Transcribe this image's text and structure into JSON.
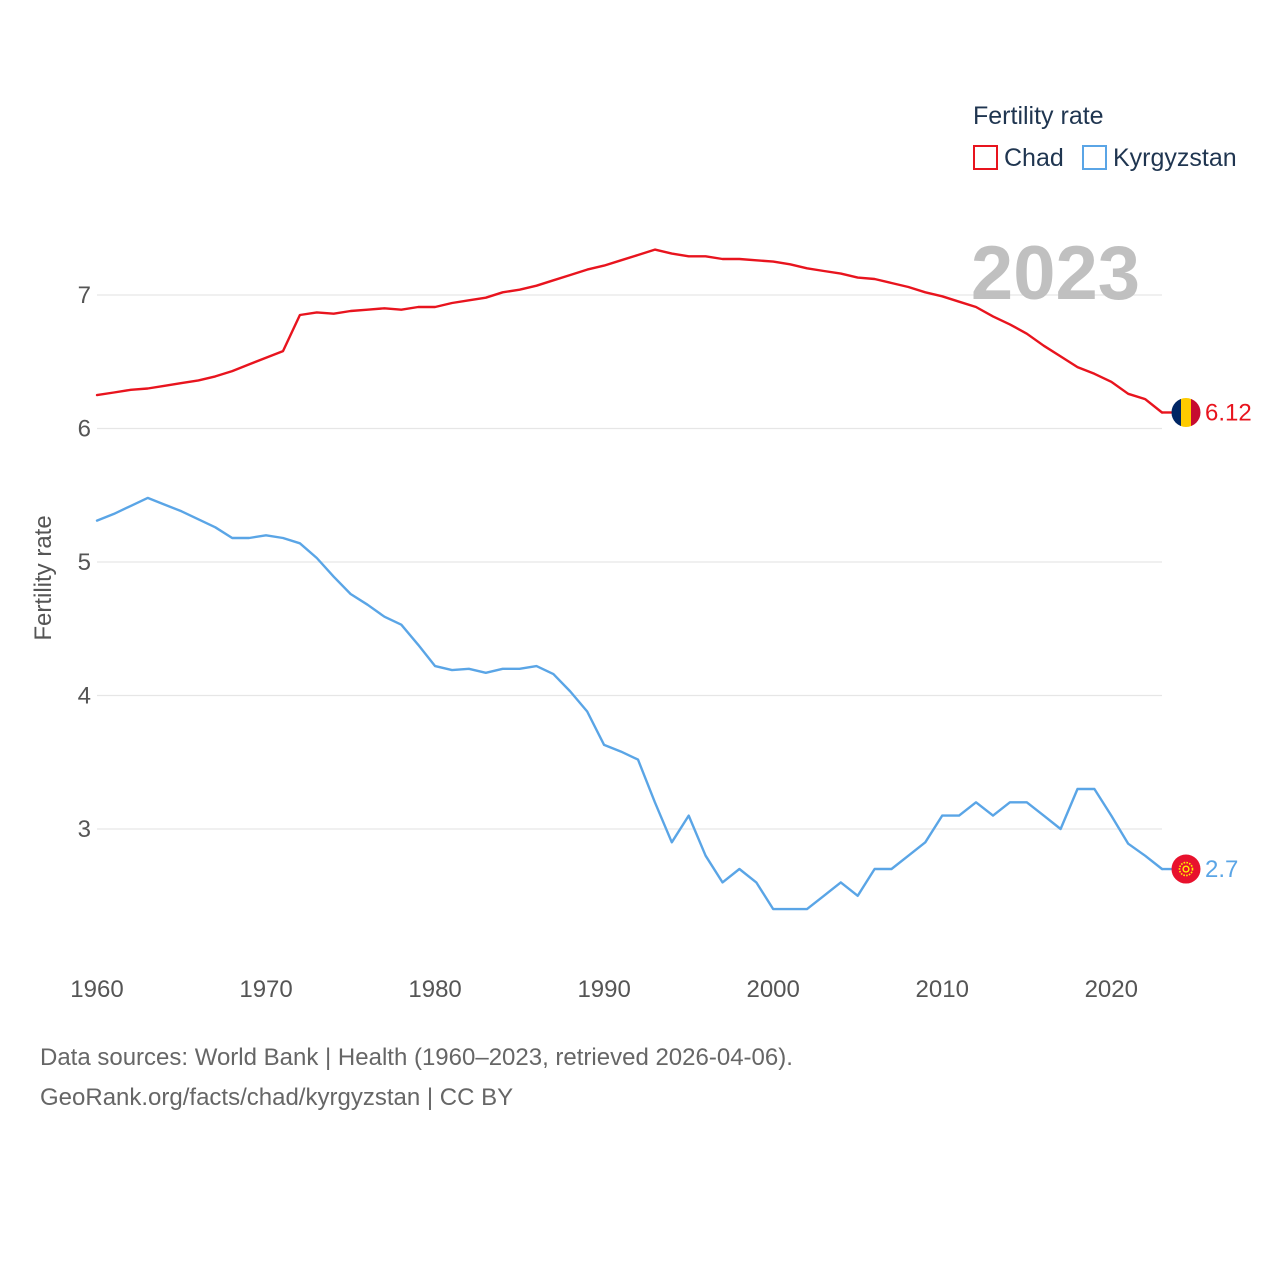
{
  "chart_data": {
    "type": "line",
    "title": "Fertility rate",
    "ylabel": "Fertility rate",
    "xlabel": "",
    "year_display": "2023",
    "xlim": [
      1960,
      2023
    ],
    "ylim": [
      2.0,
      7.5
    ],
    "x_ticks": [
      1960,
      1970,
      1980,
      1990,
      2000,
      2010,
      2020
    ],
    "y_ticks": [
      3,
      4,
      5,
      6,
      7
    ],
    "grid": true,
    "legend_position": "top-right",
    "series": [
      {
        "name": "Chad",
        "color": "#e8141e",
        "end_label": "6.12",
        "flag_icon": "chad-flag-icon",
        "x": [
          1960,
          1961,
          1962,
          1963,
          1964,
          1965,
          1966,
          1967,
          1968,
          1969,
          1970,
          1971,
          1972,
          1973,
          1974,
          1975,
          1976,
          1977,
          1978,
          1979,
          1980,
          1981,
          1982,
          1983,
          1984,
          1985,
          1986,
          1987,
          1988,
          1989,
          1990,
          1991,
          1992,
          1993,
          1994,
          1995,
          1996,
          1997,
          1998,
          1999,
          2000,
          2001,
          2002,
          2003,
          2004,
          2005,
          2006,
          2007,
          2008,
          2009,
          2010,
          2011,
          2012,
          2013,
          2014,
          2015,
          2016,
          2017,
          2018,
          2019,
          2020,
          2021,
          2022,
          2023
        ],
        "values": [
          6.25,
          6.27,
          6.29,
          6.3,
          6.32,
          6.34,
          6.36,
          6.39,
          6.43,
          6.48,
          6.53,
          6.58,
          6.85,
          6.87,
          6.86,
          6.88,
          6.89,
          6.9,
          6.89,
          6.91,
          6.91,
          6.94,
          6.96,
          6.98,
          7.02,
          7.04,
          7.07,
          7.11,
          7.15,
          7.19,
          7.22,
          7.26,
          7.3,
          7.34,
          7.31,
          7.29,
          7.29,
          7.27,
          7.27,
          7.26,
          7.25,
          7.23,
          7.2,
          7.18,
          7.16,
          7.13,
          7.12,
          7.09,
          7.06,
          7.02,
          6.99,
          6.95,
          6.91,
          6.84,
          6.78,
          6.71,
          6.62,
          6.54,
          6.46,
          6.41,
          6.35,
          6.26,
          6.22,
          6.12
        ]
      },
      {
        "name": "Kyrgyzstan",
        "color": "#5aa5e6",
        "end_label": "2.7",
        "flag_icon": "kyrgyzstan-flag-icon",
        "x": [
          1960,
          1961,
          1962,
          1963,
          1964,
          1965,
          1966,
          1967,
          1968,
          1969,
          1970,
          1971,
          1972,
          1973,
          1974,
          1975,
          1976,
          1977,
          1978,
          1979,
          1980,
          1981,
          1982,
          1983,
          1984,
          1985,
          1986,
          1987,
          1988,
          1989,
          1990,
          1991,
          1992,
          1993,
          1994,
          1995,
          1996,
          1997,
          1998,
          1999,
          2000,
          2001,
          2002,
          2003,
          2004,
          2005,
          2006,
          2007,
          2008,
          2009,
          2010,
          2011,
          2012,
          2013,
          2014,
          2015,
          2016,
          2017,
          2018,
          2019,
          2020,
          2021,
          2022,
          2023
        ],
        "values": [
          5.31,
          5.36,
          5.42,
          5.48,
          5.43,
          5.38,
          5.32,
          5.26,
          5.18,
          5.18,
          5.2,
          5.18,
          5.14,
          5.03,
          4.89,
          4.76,
          4.68,
          4.59,
          4.53,
          4.38,
          4.22,
          4.19,
          4.2,
          4.17,
          4.2,
          4.2,
          4.22,
          4.16,
          4.03,
          3.88,
          3.63,
          3.58,
          3.52,
          3.2,
          2.9,
          3.1,
          2.8,
          2.6,
          2.7,
          2.6,
          2.4,
          2.4,
          2.4,
          2.5,
          2.6,
          2.5,
          2.7,
          2.7,
          2.8,
          2.9,
          3.1,
          3.1,
          3.2,
          3.1,
          3.2,
          3.2,
          3.1,
          3.0,
          3.3,
          3.3,
          3.1,
          2.89,
          2.8,
          2.7
        ]
      }
    ]
  },
  "footer": {
    "line1": "Data sources: World Bank | Health (1960–2023, retrieved 2026-04-06).",
    "line2": "GeoRank.org/facts/chad/kyrgyzstan | CC BY"
  }
}
